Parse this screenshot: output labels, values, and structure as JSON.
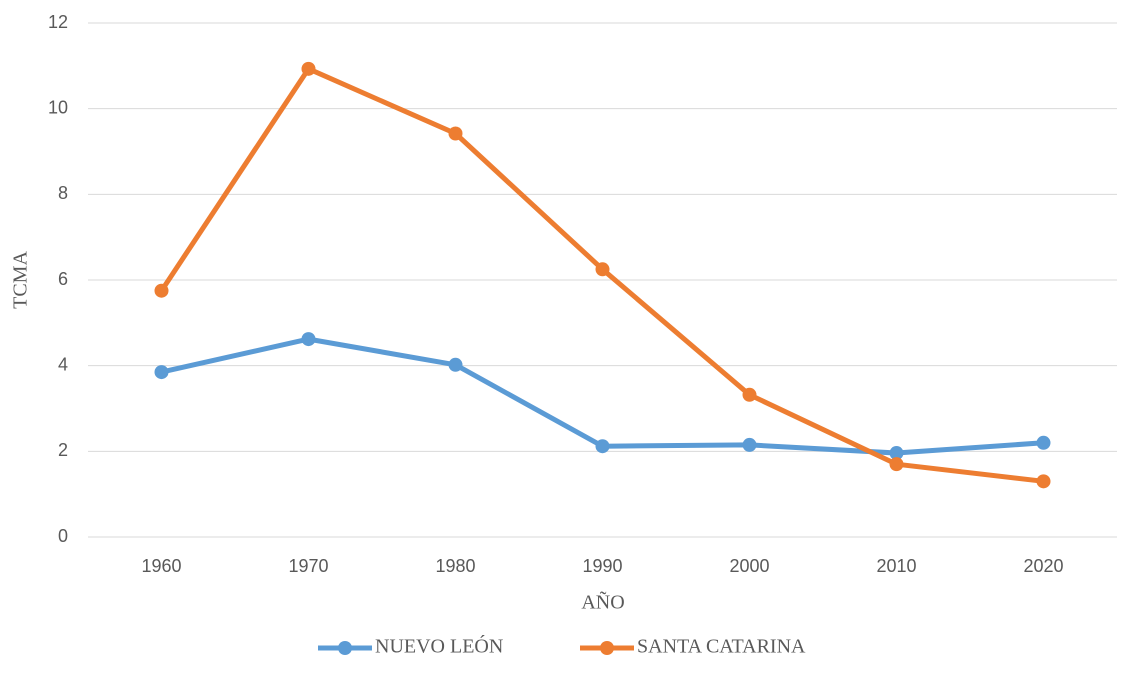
{
  "chart_data": {
    "type": "line",
    "x_label": "AÑO",
    "y_label": "TCMA",
    "categories": [
      "1960",
      "1970",
      "1980",
      "1990",
      "2000",
      "2010",
      "2020"
    ],
    "series": [
      {
        "name": "NUEVO LEÓN",
        "color": "#5b9bd5",
        "values": [
          3.85,
          4.62,
          4.02,
          2.12,
          2.15,
          1.96,
          2.2
        ]
      },
      {
        "name": "SANTA CATARINA",
        "color": "#ed7d31",
        "values": [
          5.75,
          10.93,
          9.42,
          6.25,
          3.32,
          1.7,
          1.3
        ]
      }
    ],
    "ylim": [
      0,
      12
    ],
    "yticks": [
      0,
      2,
      4,
      6,
      8,
      10,
      12
    ],
    "grid": true,
    "legend": "bottom"
  }
}
